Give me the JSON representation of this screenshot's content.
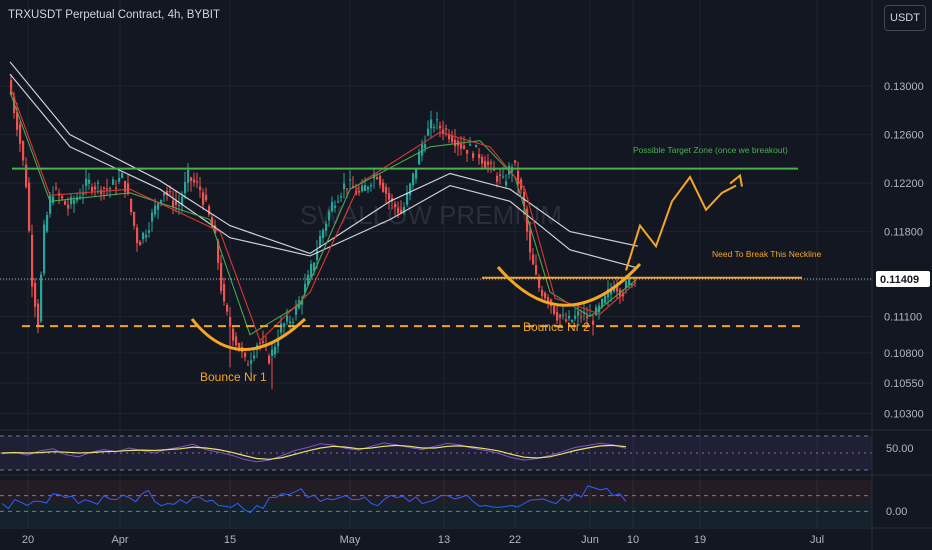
{
  "header": {
    "title": "TRXUSDT Perpetual Contract, 4h, BYBIT",
    "currency": "USDT"
  },
  "watermark": "SWALLOW PREMIUM",
  "colors": {
    "background": "#131722",
    "candle_up": "#26a69a",
    "candle_down": "#ef5350",
    "target_line": "#4caf50",
    "annotation": "#f5a623",
    "ma_white": "#e0e3eb",
    "ma_green": "#4caf50",
    "ma_red": "#e53935",
    "rsi_line": "#7e57c2",
    "rsi_ma": "#e9e26a",
    "osc_line": "#2962ff",
    "price_badge": "#ffffff"
  },
  "chart_data": {
    "type": "candlestick",
    "symbol": "TRXUSDT",
    "timeframe": "4h",
    "exchange": "BYBIT",
    "ylim": [
      0.1018,
      0.1348
    ],
    "y_ticks": [
      "0.13000",
      "0.12600",
      "0.12200",
      "0.11800",
      "0.11409",
      "0.11100",
      "0.10800",
      "0.10550",
      "0.10300"
    ],
    "x_ticks": [
      "20",
      "Apr",
      "15",
      "May",
      "13",
      "22",
      "Jun",
      "10",
      "19",
      "Jul"
    ],
    "last_price": "0.11409",
    "price_path": [
      [
        0,
        0.1305
      ],
      [
        10,
        0.1265
      ],
      [
        18,
        0.122
      ],
      [
        24,
        0.114
      ],
      [
        30,
        0.1105
      ],
      [
        36,
        0.118
      ],
      [
        44,
        0.1215
      ],
      [
        60,
        0.12
      ],
      [
        80,
        0.122
      ],
      [
        100,
        0.1215
      ],
      [
        115,
        0.1225
      ],
      [
        122,
        0.12
      ],
      [
        130,
        0.117
      ],
      [
        140,
        0.1185
      ],
      [
        155,
        0.1215
      ],
      [
        170,
        0.12
      ],
      [
        180,
        0.1225
      ],
      [
        192,
        0.1215
      ],
      [
        200,
        0.1195
      ],
      [
        208,
        0.117
      ],
      [
        215,
        0.112
      ],
      [
        225,
        0.1095
      ],
      [
        238,
        0.107
      ],
      [
        250,
        0.109
      ],
      [
        262,
        0.1075
      ],
      [
        272,
        0.11
      ],
      [
        285,
        0.111
      ],
      [
        300,
        0.114
      ],
      [
        312,
        0.1175
      ],
      [
        325,
        0.1205
      ],
      [
        338,
        0.122
      ],
      [
        352,
        0.121
      ],
      [
        368,
        0.123
      ],
      [
        382,
        0.1205
      ],
      [
        394,
        0.1195
      ],
      [
        405,
        0.1225
      ],
      [
        415,
        0.1255
      ],
      [
        425,
        0.127
      ],
      [
        440,
        0.1262
      ],
      [
        455,
        0.125
      ],
      [
        470,
        0.1245
      ],
      [
        482,
        0.1232
      ],
      [
        495,
        0.122
      ],
      [
        505,
        0.1238
      ],
      [
        515,
        0.1205
      ],
      [
        522,
        0.116
      ],
      [
        530,
        0.1135
      ],
      [
        540,
        0.1125
      ],
      [
        550,
        0.111
      ],
      [
        560,
        0.1105
      ],
      [
        572,
        0.1112
      ],
      [
        585,
        0.1108
      ],
      [
        596,
        0.1122
      ],
      [
        606,
        0.1138
      ],
      [
        614,
        0.113
      ],
      [
        624,
        0.1141
      ]
    ],
    "moving_averages": [
      {
        "color": "#e0e3eb",
        "points": [
          [
            0,
            0.132
          ],
          [
            60,
            0.126
          ],
          [
            150,
            0.1222
          ],
          [
            220,
            0.1185
          ],
          [
            300,
            0.1162
          ],
          [
            380,
            0.1205
          ],
          [
            440,
            0.1228
          ],
          [
            500,
            0.1215
          ],
          [
            560,
            0.118
          ],
          [
            628,
            0.1168
          ]
        ]
      },
      {
        "color": "#e0e3eb",
        "points": [
          [
            0,
            0.131
          ],
          [
            60,
            0.125
          ],
          [
            150,
            0.1215
          ],
          [
            220,
            0.1175
          ],
          [
            300,
            0.116
          ],
          [
            380,
            0.119
          ],
          [
            440,
            0.1218
          ],
          [
            500,
            0.1205
          ],
          [
            560,
            0.1165
          ],
          [
            628,
            0.115
          ]
        ]
      },
      {
        "color": "#4caf50",
        "points": [
          [
            0,
            0.1295
          ],
          [
            40,
            0.1205
          ],
          [
            120,
            0.1212
          ],
          [
            200,
            0.119
          ],
          [
            240,
            0.1095
          ],
          [
            290,
            0.112
          ],
          [
            340,
            0.1215
          ],
          [
            420,
            0.125
          ],
          [
            470,
            0.1255
          ],
          [
            505,
            0.1225
          ],
          [
            540,
            0.113
          ],
          [
            580,
            0.111
          ],
          [
            626,
            0.114
          ]
        ]
      },
      {
        "color": "#e53935",
        "points": [
          [
            0,
            0.13
          ],
          [
            40,
            0.121
          ],
          [
            120,
            0.1215
          ],
          [
            210,
            0.118
          ],
          [
            250,
            0.109
          ],
          [
            300,
            0.113
          ],
          [
            350,
            0.122
          ],
          [
            430,
            0.1262
          ],
          [
            480,
            0.125
          ],
          [
            515,
            0.1215
          ],
          [
            545,
            0.1125
          ],
          [
            590,
            0.1112
          ],
          [
            626,
            0.1138
          ]
        ]
      }
    ],
    "levels": [
      {
        "name": "target",
        "price": 0.1232,
        "x_range": [
          12,
          798
        ],
        "style": "solid",
        "color": "#4caf50"
      },
      {
        "name": "neckline",
        "price": 0.1142,
        "x_range": [
          482,
          802
        ],
        "style": "solid",
        "color": "#f5a623"
      },
      {
        "name": "support",
        "price": 0.1102,
        "x_range": [
          22,
          806
        ],
        "style": "dashed",
        "color": "#f5a623"
      },
      {
        "name": "last-price",
        "price": 0.11409,
        "x_range": [
          0,
          872
        ],
        "style": "dotted",
        "color": "#b2b5be"
      }
    ],
    "annotations": {
      "target_label": "Possible Target Zone (once we breakout)",
      "neckline_label": "Need To Break This Neckline",
      "bounce1": "Bounce Nr 1",
      "bounce2": "Bounce Nr 2"
    },
    "projection_path": [
      [
        626,
        0.1148
      ],
      [
        640,
        0.1185
      ],
      [
        656,
        0.1168
      ],
      [
        672,
        0.1205
      ],
      [
        690,
        0.1225
      ],
      [
        706,
        0.1198
      ],
      [
        722,
        0.1212
      ],
      [
        736,
        0.1218
      ]
    ],
    "rsi": {
      "levels": [
        "50.00"
      ],
      "ylim": [
        0,
        100
      ],
      "rsi_values": [
        48,
        52,
        45,
        55,
        60,
        46,
        41,
        52,
        58,
        53,
        62,
        56,
        50,
        59,
        64,
        71,
        58,
        52,
        45,
        35,
        29,
        33,
        44,
        56,
        63,
        72,
        69,
        61,
        57,
        66,
        74,
        69,
        63,
        58,
        66,
        73,
        69,
        61,
        56,
        49,
        39,
        33,
        37,
        44,
        53,
        63,
        68,
        73,
        69,
        61
      ],
      "ma_values": [
        50,
        51,
        50,
        51,
        53,
        52,
        50,
        51,
        53,
        54,
        56,
        57,
        56,
        58,
        60,
        64,
        62,
        58,
        52,
        44,
        37,
        35,
        39,
        47,
        55,
        62,
        66,
        64,
        60,
        62,
        66,
        68,
        66,
        62,
        62,
        66,
        67,
        64,
        60,
        55,
        47,
        40,
        38,
        41,
        48,
        56,
        62,
        67,
        68,
        65
      ]
    },
    "oscillator": {
      "levels": [
        "0.00"
      ],
      "ylim": [
        -0.8,
        1.6
      ],
      "values": [
        0.4,
        0.6,
        0.3,
        0.5,
        0.9,
        0.7,
        0.4,
        0.5,
        0.8,
        0.6,
        0.7,
        0.9,
        0.5,
        0.4,
        0.6,
        0.7,
        0.5,
        0.3,
        0.2,
        0.1,
        0.3,
        0.7,
        0.9,
        1.0,
        0.7,
        0.5,
        0.6,
        0.8,
        0.6,
        0.4,
        0.6,
        0.7,
        0.5,
        0.4,
        0.6,
        0.8,
        0.7,
        0.5,
        0.3,
        0.2,
        0.3,
        0.4,
        0.6,
        0.5,
        0.7,
        0.9,
        1.3,
        1.1,
        0.8,
        0.5
      ]
    }
  }
}
